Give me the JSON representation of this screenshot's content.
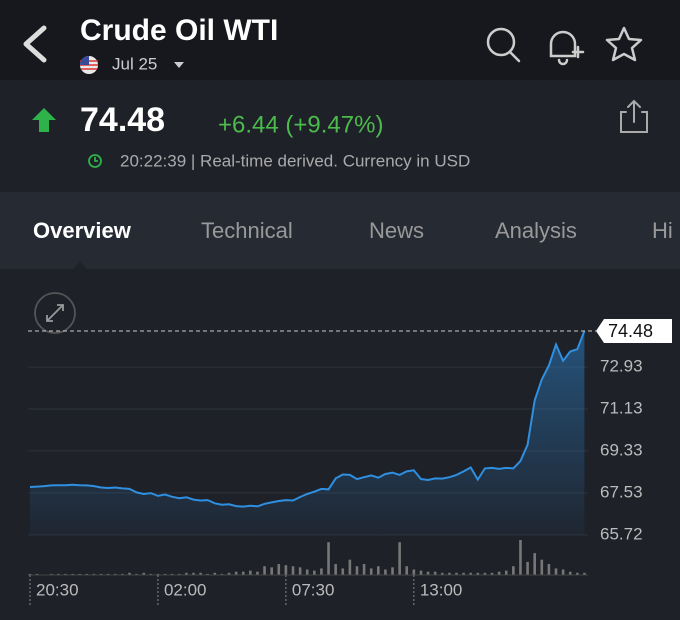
{
  "header": {
    "title": "Crude Oil WTI",
    "date": "Jul 25"
  },
  "quote": {
    "price": "74.48",
    "change": "+6.44 (+9.47%)",
    "time": "20:22:39 | Real-time derived. Currency in USD"
  },
  "tabs": [
    "Overview",
    "Technical",
    "News",
    "Analysis",
    "Hi"
  ],
  "active_tab": 0,
  "chart_data": {
    "type": "area",
    "color": "#2f8fe0",
    "grid": true,
    "categories": [
      "20:30",
      null,
      null,
      null,
      null,
      null,
      null,
      null,
      null,
      null,
      null,
      null,
      null,
      null,
      null,
      null,
      null,
      null,
      "02:00",
      null,
      null,
      null,
      null,
      null,
      null,
      null,
      null,
      null,
      null,
      null,
      null,
      null,
      null,
      null,
      null,
      null,
      "07:30",
      null,
      null,
      null,
      null,
      null,
      null,
      null,
      null,
      null,
      null,
      null,
      null,
      null,
      null,
      null,
      null,
      null,
      "13:00",
      null,
      null,
      null,
      null,
      null,
      null,
      null,
      null,
      null,
      null,
      null,
      null,
      null,
      null,
      null,
      null,
      null,
      null,
      null,
      null,
      null,
      null,
      null,
      null
    ],
    "values": [
      67.78,
      67.8,
      67.82,
      67.85,
      67.86,
      67.86,
      67.88,
      67.86,
      67.85,
      67.82,
      67.76,
      67.74,
      67.76,
      67.72,
      67.7,
      67.55,
      67.48,
      67.52,
      67.4,
      67.46,
      67.36,
      67.3,
      67.34,
      67.24,
      67.2,
      67.22,
      67.08,
      67.02,
      67.04,
      66.96,
      66.94,
      66.98,
      66.95,
      67.06,
      67.12,
      67.18,
      67.22,
      67.2,
      67.35,
      67.48,
      67.58,
      67.7,
      67.68,
      68.15,
      68.32,
      68.3,
      68.12,
      68.2,
      68.28,
      68.18,
      68.34,
      68.4,
      68.3,
      68.45,
      68.5,
      68.12,
      68.08,
      68.15,
      68.14,
      68.2,
      68.3,
      68.45,
      68.62,
      68.1,
      68.58,
      68.6,
      68.56,
      68.6,
      68.58,
      68.9,
      69.6,
      71.5,
      72.4,
      73.0,
      73.9,
      73.2,
      73.6,
      73.7,
      74.48
    ],
    "volume": [
      1,
      1,
      0,
      1,
      1,
      1,
      1,
      1,
      1,
      1,
      1,
      1,
      1,
      1,
      2,
      1,
      2,
      1,
      1,
      1,
      1,
      1,
      2,
      2,
      2,
      1,
      2,
      1,
      2,
      3,
      3,
      4,
      3,
      8,
      7,
      10,
      9,
      8,
      7,
      5,
      4,
      6,
      30,
      10,
      6,
      14,
      8,
      10,
      6,
      8,
      5,
      7,
      30,
      8,
      5,
      4,
      3,
      3,
      2,
      2,
      2,
      2,
      2,
      2,
      2,
      2,
      3,
      4,
      8,
      32,
      12,
      20,
      14,
      10,
      6,
      5,
      3,
      2,
      2
    ],
    "ylim": [
      65.72,
      74.48
    ],
    "yticks": [
      65.72,
      67.53,
      69.33,
      71.13,
      72.93
    ],
    "last_value": 74.48
  }
}
